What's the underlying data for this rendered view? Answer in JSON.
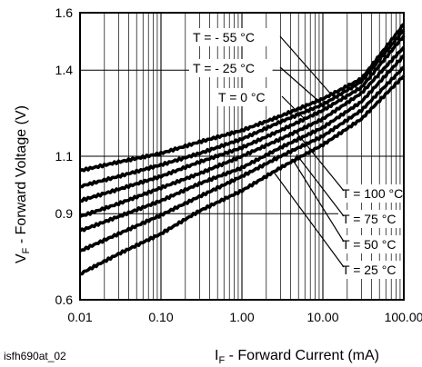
{
  "chart_data": {
    "type": "line",
    "xlabel_main": "I",
    "xlabel_sub": "F",
    "xlabel_rest": " - Forward Current (mA)",
    "ylabel_main": "V",
    "ylabel_sub": "F",
    "ylabel_rest": " - Forward Voltage (V)",
    "figure_code": "isfh690at_02",
    "x_scale": "log",
    "xlim": [
      0.01,
      100
    ],
    "ylim": [
      0.6,
      1.6
    ],
    "x_tick_labels": [
      "0.01",
      "0.10",
      "1.00",
      "10.00",
      "100.00"
    ],
    "x_tick_values": [
      0.01,
      0.1,
      1,
      10,
      100
    ],
    "y_tick_labels": [
      "0.6",
      "0.9",
      "1.1",
      "1.4",
      "1.6"
    ],
    "y_tick_values": [
      0.6,
      0.9,
      1.1,
      1.4,
      1.6
    ],
    "grid": true,
    "x": [
      0.01,
      0.03,
      0.1,
      0.3,
      1,
      3,
      10,
      30,
      100
    ],
    "series": [
      {
        "name": "T = - 55 °C",
        "values": [
          1.05,
          1.08,
          1.11,
          1.15,
          1.19,
          1.24,
          1.3,
          1.37,
          1.56
        ]
      },
      {
        "name": "T = - 25 °C",
        "values": [
          0.995,
          1.03,
          1.07,
          1.11,
          1.16,
          1.22,
          1.28,
          1.36,
          1.54
        ]
      },
      {
        "name": "T = 0 °C",
        "values": [
          0.945,
          0.985,
          1.03,
          1.08,
          1.13,
          1.19,
          1.26,
          1.34,
          1.52
        ]
      },
      {
        "name": "T = 25 °C",
        "values": [
          0.89,
          0.935,
          0.99,
          1.04,
          1.1,
          1.16,
          1.23,
          1.32,
          1.48
        ]
      },
      {
        "name": "T = 50 °C",
        "values": [
          0.84,
          0.89,
          0.945,
          1.005,
          1.06,
          1.13,
          1.2,
          1.29,
          1.45
        ]
      },
      {
        "name": "T = 75 °C",
        "values": [
          0.77,
          0.83,
          0.895,
          0.96,
          1.03,
          1.1,
          1.17,
          1.26,
          1.41
        ]
      },
      {
        "name": "T = 100 °C",
        "values": [
          0.69,
          0.76,
          0.83,
          0.91,
          0.98,
          1.06,
          1.14,
          1.23,
          1.38
        ]
      }
    ],
    "annotations": [
      {
        "text": "T = - 55 °C",
        "series": 0
      },
      {
        "text": "T = - 25 °C",
        "series": 1
      },
      {
        "text": "T = 0 °C",
        "series": 2
      },
      {
        "text": "T = 100 °C",
        "series": 6
      },
      {
        "text": "T = 75 °C",
        "series": 5
      },
      {
        "text": "T = 50 °C",
        "series": 4
      },
      {
        "text": "T = 25 °C",
        "series": 3
      }
    ]
  }
}
